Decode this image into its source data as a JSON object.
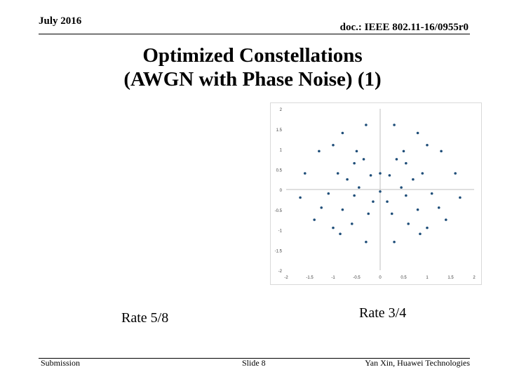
{
  "header": {
    "date": "July 2016",
    "doc_id": "doc.: IEEE 802.11-16/0955r0"
  },
  "slide": {
    "title_line1": "Optimized Constellations",
    "title_line2": "(AWGN with Phase Noise) (1)",
    "rate_left": "Rate 5/8",
    "rate_right": "Rate 3/4"
  },
  "footer": {
    "left": "Submission",
    "center": "Slide 8",
    "right": "Yan Xin, Huawei Technologies"
  },
  "chart_data": {
    "type": "scatter",
    "xlim": [
      -2,
      2
    ],
    "ylim": [
      -2,
      2
    ],
    "x_ticks": [
      "-2",
      "-1.5",
      "-1",
      "-0.5",
      "0",
      "0.5",
      "1",
      "1.5",
      "2"
    ],
    "y_ticks": [
      "2",
      "1.5",
      "1",
      "0.5",
      "0",
      "-0.5",
      "-1",
      "-1.5",
      "-2"
    ],
    "grid": false,
    "point_color": "#1f4e79",
    "points": [
      [
        -0.3,
        1.6
      ],
      [
        0.3,
        1.6
      ],
      [
        -0.8,
        1.4
      ],
      [
        0.8,
        1.4
      ],
      [
        -1.3,
        0.95
      ],
      [
        -0.5,
        0.95
      ],
      [
        0.5,
        0.95
      ],
      [
        1.3,
        0.95
      ],
      [
        -1.6,
        0.4
      ],
      [
        -0.9,
        0.4
      ],
      [
        -0.2,
        0.35
      ],
      [
        0.2,
        0.35
      ],
      [
        0.9,
        0.4
      ],
      [
        1.6,
        0.4
      ],
      [
        -1.7,
        -0.2
      ],
      [
        -1.1,
        -0.1
      ],
      [
        -0.45,
        0.05
      ],
      [
        0.45,
        0.05
      ],
      [
        1.1,
        -0.1
      ],
      [
        1.7,
        -0.2
      ],
      [
        -1.4,
        -0.75
      ],
      [
        -0.8,
        -0.5
      ],
      [
        -0.15,
        -0.3
      ],
      [
        0.15,
        -0.3
      ],
      [
        0.8,
        -0.5
      ],
      [
        1.4,
        -0.75
      ],
      [
        -0.85,
        -1.1
      ],
      [
        0.85,
        -1.1
      ],
      [
        -0.3,
        -1.3
      ],
      [
        0.3,
        -1.3
      ],
      [
        -1.0,
        1.1
      ],
      [
        1.0,
        1.1
      ],
      [
        -0.55,
        0.65
      ],
      [
        0.55,
        0.65
      ],
      [
        -1.25,
        -0.45
      ],
      [
        1.25,
        -0.45
      ],
      [
        -0.6,
        -0.85
      ],
      [
        0.6,
        -0.85
      ],
      [
        -0.35,
        0.75
      ],
      [
        0.35,
        0.75
      ],
      [
        0.0,
        0.4
      ],
      [
        0.0,
        -0.05
      ],
      [
        -0.7,
        0.25
      ],
      [
        0.7,
        0.25
      ],
      [
        -0.55,
        -0.15
      ],
      [
        0.55,
        -0.15
      ],
      [
        -0.25,
        -0.6
      ],
      [
        0.25,
        -0.6
      ],
      [
        -1.0,
        -0.95
      ],
      [
        1.0,
        -0.95
      ]
    ]
  }
}
